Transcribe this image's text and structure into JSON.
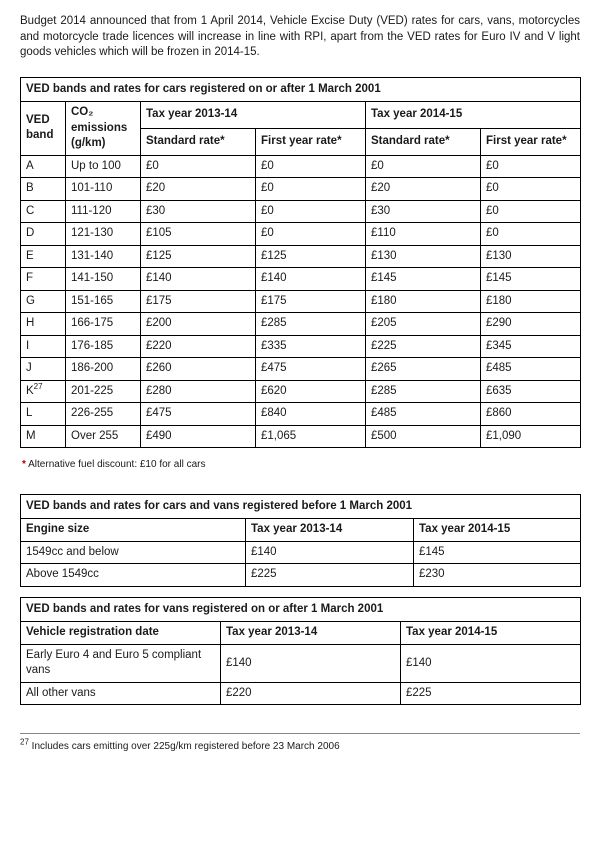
{
  "intro": "Budget 2014 announced that from 1 April 2014, Vehicle Excise Duty (VED) rates for cars, vans, motorcycles and motorcycle trade licences will increase in line with RPI, apart from the VED rates for Euro IV and V light goods vehicles which will be frozen in 2014-15.",
  "table1": {
    "title": "VED bands and rates for cars registered on or after 1 March 2001",
    "head_band": "VED band",
    "head_co2": "CO₂ emissions (g/km)",
    "head_y1": "Tax year 2013-14",
    "head_y2": "Tax year 2014-15",
    "head_std": "Standard rate*",
    "head_first": "First year rate*",
    "head_first2": "First year rate*",
    "rows": [
      {
        "band": "A",
        "co2": "Up to 100",
        "std1": "£0",
        "first1": "£0",
        "std2": "£0",
        "first2": "£0"
      },
      {
        "band": "B",
        "co2": "101-110",
        "std1": "£20",
        "first1": "£0",
        "std2": "£20",
        "first2": "£0"
      },
      {
        "band": "C",
        "co2": "111-120",
        "std1": "£30",
        "first1": "£0",
        "std2": "£30",
        "first2": "£0"
      },
      {
        "band": "D",
        "co2": "121-130",
        "std1": "£105",
        "first1": "£0",
        "std2": "£110",
        "first2": "£0"
      },
      {
        "band": "E",
        "co2": "131-140",
        "std1": "£125",
        "first1": "£125",
        "std2": "£130",
        "first2": "£130"
      },
      {
        "band": "F",
        "co2": "141-150",
        "std1": "£140",
        "first1": "£140",
        "std2": "£145",
        "first2": "£145"
      },
      {
        "band": "G",
        "co2": "151-165",
        "std1": "£175",
        "first1": "£175",
        "std2": "£180",
        "first2": "£180"
      },
      {
        "band": "H",
        "co2": "166-175",
        "std1": "£200",
        "first1": "£285",
        "std2": "£205",
        "first2": "£290"
      },
      {
        "band": "I",
        "co2": "176-185",
        "std1": "£220",
        "first1": "£335",
        "std2": "£225",
        "first2": "£345"
      },
      {
        "band": "J",
        "co2": "186-200",
        "std1": "£260",
        "first1": "£475",
        "std2": "£265",
        "first2": "£485"
      },
      {
        "band": "K",
        "sup": "27",
        "co2": "201-225",
        "std1": "£280",
        "first1": "£620",
        "std2": "£285",
        "first2": "£635"
      },
      {
        "band": "L",
        "co2": "226-255",
        "std1": "£475",
        "first1": "£840",
        "std2": "£485",
        "first2": "£860"
      },
      {
        "band": "M",
        "co2": "Over 255",
        "std1": "£490",
        "first1": "£1,065",
        "std2": "£500",
        "first2": "£1,090"
      }
    ]
  },
  "alt_fuel_note": "Alternative fuel discount: £10 for all cars",
  "table2": {
    "title": "VED bands and rates for cars and vans registered before 1 March 2001",
    "head_engine": "Engine size",
    "head_y1": "Tax year 2013-14",
    "head_y2": "Tax year 2014-15",
    "rows": [
      {
        "engine": "1549cc and below",
        "y1": "£140",
        "y2": "£145"
      },
      {
        "engine": "Above 1549cc",
        "y1": "£225",
        "y2": "£230"
      }
    ]
  },
  "table3": {
    "title": "VED bands and rates for vans registered on or after 1 March 2001",
    "head_reg": "Vehicle registration date",
    "head_y1": "Tax year 2013-14",
    "head_y2": "Tax year 2014-15",
    "rows": [
      {
        "reg": "Early Euro 4 and Euro 5 compliant vans",
        "y1": "£140",
        "y2": "£140"
      },
      {
        "reg": "All other vans",
        "y1": "£220",
        "y2": "£225"
      }
    ]
  },
  "footnote27_num": "27",
  "footnote27": " Includes cars emitting over 225g/km registered before 23 March 2006",
  "star": "*"
}
